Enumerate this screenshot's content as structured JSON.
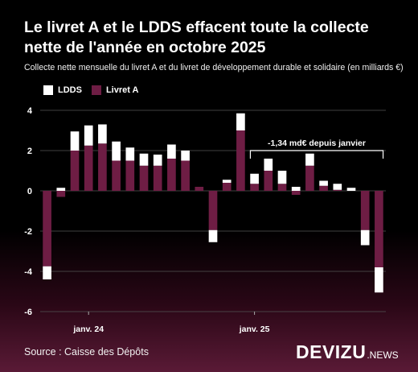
{
  "title": "Le livret A et le LDDS effacent toute la collecte nette de l'année en octobre 2025",
  "subtitle": "Collecte nette mensuelle du livret A et du livret de développement durable et solidaire (en milliards €)",
  "source": "Source : Caisse des Dépôts",
  "brand": {
    "name": "DEVIZU",
    "suffix": ".NEWS"
  },
  "colors": {
    "ldds": "#ffffff",
    "livret_a": "#6e1d44",
    "background": "#000000"
  },
  "chart_data": {
    "type": "bar",
    "stacked": true,
    "categories": [
      "2023-10",
      "2023-11",
      "2023-12",
      "2024-01",
      "2024-02",
      "2024-03",
      "2024-04",
      "2024-05",
      "2024-06",
      "2024-07",
      "2024-08",
      "2024-09",
      "2024-10",
      "2024-11",
      "2024-12",
      "2025-01",
      "2025-02",
      "2025-03",
      "2025-04",
      "2025-05",
      "2025-06",
      "2025-07",
      "2025-08",
      "2025-09",
      "2025-10"
    ],
    "x_tick_labels": [
      {
        "category": "2024-01",
        "label": "janv. 24"
      },
      {
        "category": "2025-01",
        "label": "janv. 25"
      }
    ],
    "series": [
      {
        "name": "LDDS",
        "color": "#ffffff",
        "values": [
          -0.65,
          0.15,
          0.95,
          1.0,
          0.95,
          0.95,
          0.65,
          0.6,
          0.55,
          0.7,
          0.5,
          0.0,
          -0.6,
          0.15,
          0.85,
          0.5,
          0.6,
          0.65,
          0.2,
          0.6,
          0.25,
          0.3,
          0.15,
          -0.75,
          -1.25
        ]
      },
      {
        "name": "Livret A",
        "color": "#6e1d44",
        "values": [
          -3.75,
          -0.3,
          2.0,
          2.25,
          2.35,
          1.5,
          1.5,
          1.25,
          1.25,
          1.6,
          1.5,
          0.2,
          -1.95,
          0.4,
          3.0,
          0.35,
          1.0,
          0.35,
          -0.2,
          1.25,
          0.25,
          0.05,
          0.0,
          -1.95,
          -3.8
        ]
      }
    ],
    "ylim": [
      -6,
      4
    ],
    "yticks": [
      -6,
      -4,
      -2,
      0,
      2,
      4
    ],
    "grid": true,
    "legend_position": "top-left",
    "annotation": {
      "text": "-1,34 md€ depuis janvier",
      "from": "2025-01",
      "to": "2025-10"
    }
  }
}
